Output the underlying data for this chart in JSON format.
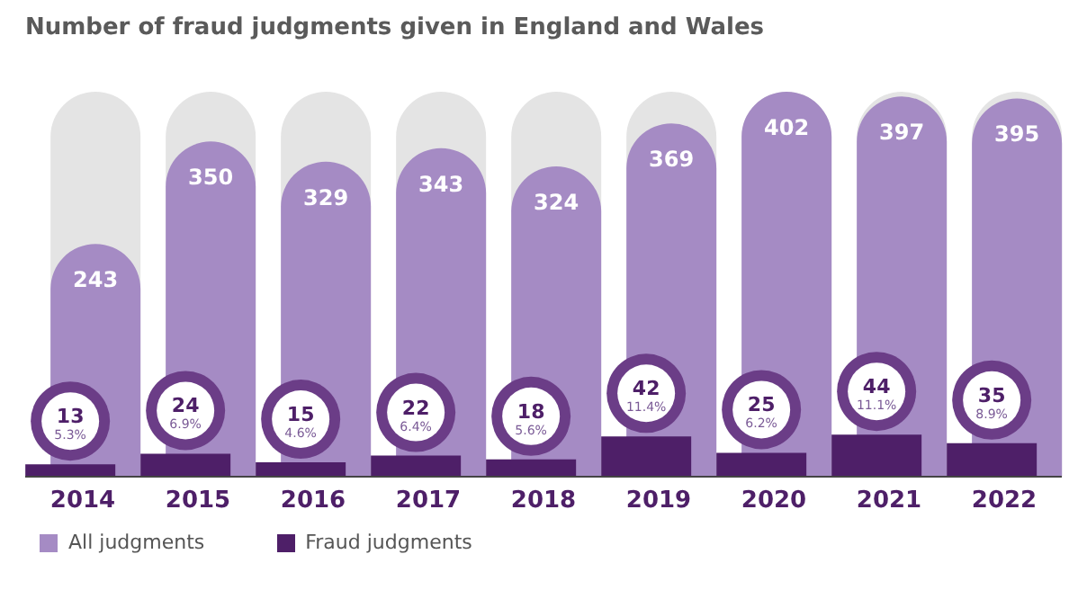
{
  "chart_data": {
    "type": "bar",
    "title": "Number of fraud judgments given in England and Wales",
    "categories": [
      "2014",
      "2015",
      "2016",
      "2017",
      "2018",
      "2019",
      "2020",
      "2021",
      "2022"
    ],
    "series": [
      {
        "name": "All judgments",
        "color": "#a58bc4",
        "values": [
          243,
          350,
          329,
          343,
          324,
          369,
          402,
          397,
          395
        ],
        "value_labels": [
          "243",
          "350",
          "329",
          "343",
          "324",
          "369",
          "402",
          "397",
          "395"
        ]
      },
      {
        "name": "Fraud judgments",
        "color": "#4e1f68",
        "values": [
          13,
          24,
          15,
          22,
          18,
          42,
          25,
          44,
          35
        ],
        "value_labels": [
          "13\n5.3%",
          "24\n6.9%",
          "15\n4.6%",
          "22\n6.4%",
          "18\n5.6%",
          "42\n11.4%",
          "25\n6.2%",
          "44\n11.1%",
          "35\n8.9%"
        ]
      }
    ],
    "legend": "bottom left",
    "tick_labels": "x"
  }
}
